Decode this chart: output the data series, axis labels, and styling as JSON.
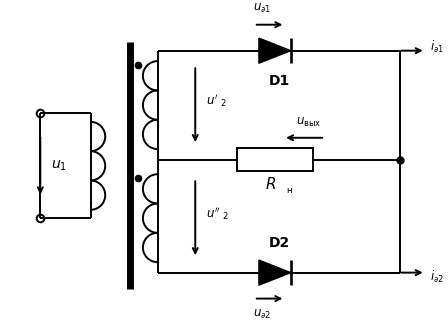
{
  "bg_color": "#ffffff",
  "line_color": "#000000",
  "figsize": [
    4.48,
    3.25
  ],
  "dpi": 100
}
